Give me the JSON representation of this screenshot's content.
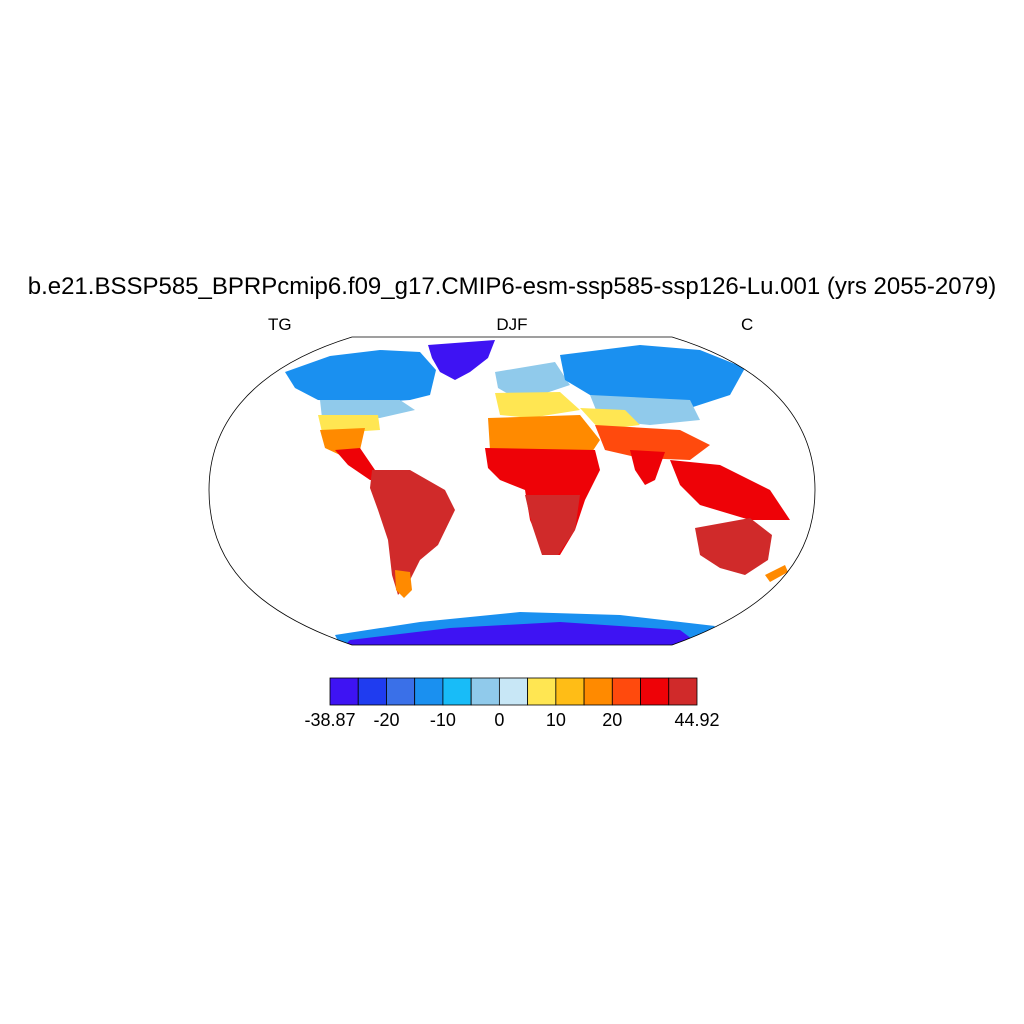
{
  "title": "b.e21.BSSP585_BPRPcmip6.f09_g17.CMIP6-esm-ssp585-ssp126-Lu.001 (yrs 2055-2079)",
  "left_string": "TG",
  "center_string": "DJF",
  "right_string": "C",
  "colorbar": {
    "colors": [
      "#3e13f3",
      "#1f3cf0",
      "#3a70e8",
      "#1a90f0",
      "#18bcf8",
      "#90caeb",
      "#c8e7f6",
      "#ffe652",
      "#ffbd16",
      "#ff8a00",
      "#ff4a0d",
      "#ee0207",
      "#d02a2a"
    ],
    "tick_labels": [
      "-38.87",
      "-20",
      "-10",
      "0",
      "10",
      "20",
      "44.92"
    ]
  }
}
